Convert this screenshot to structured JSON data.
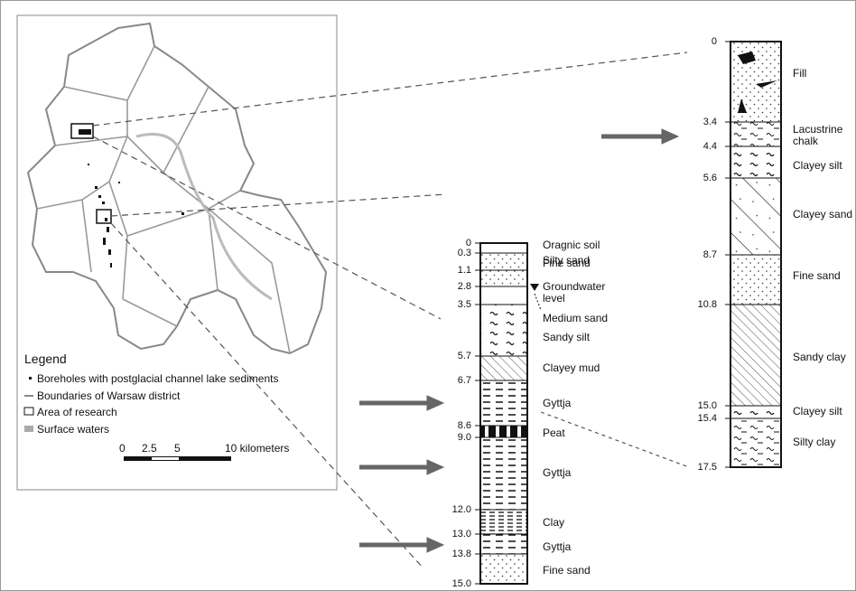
{
  "map": {
    "legend": {
      "title": "Legend",
      "items": [
        "Boreholes with postglacial channel lake sediments",
        "Boundaries of Warsaw district",
        "Area of research",
        "Surface waters"
      ]
    },
    "scale": [
      "0",
      "2.5",
      "5",
      "10 kilometers"
    ]
  },
  "boreholes": [
    {
      "depths": [
        "0",
        "0.3",
        "1.1",
        "2.8",
        "3.5",
        "5.7",
        "6.7",
        "8.6",
        "9.0",
        "12.0",
        "13.0",
        "13.8",
        "15.0"
      ],
      "layers": [
        "Oragnic soil",
        "Silty sand",
        "Fine sand",
        "Groundwater level",
        "Medium sand",
        "Sandy silt",
        "Clayey mud",
        "Gyttja",
        "Peat",
        "Gyttja",
        "Clay",
        "Gyttja",
        "Fine sand"
      ]
    },
    {
      "depths": [
        "0",
        "3.4",
        "4.4",
        "5.6",
        "8.7",
        "10.8",
        "15.0",
        "15.4",
        "17.5"
      ],
      "layers": [
        "Fill",
        "Lacustrine chalk",
        "Clayey silt",
        "Clayey sand",
        "Fine sand",
        "Sandy clay",
        "Clayey silt",
        "Silty clay"
      ]
    }
  ]
}
